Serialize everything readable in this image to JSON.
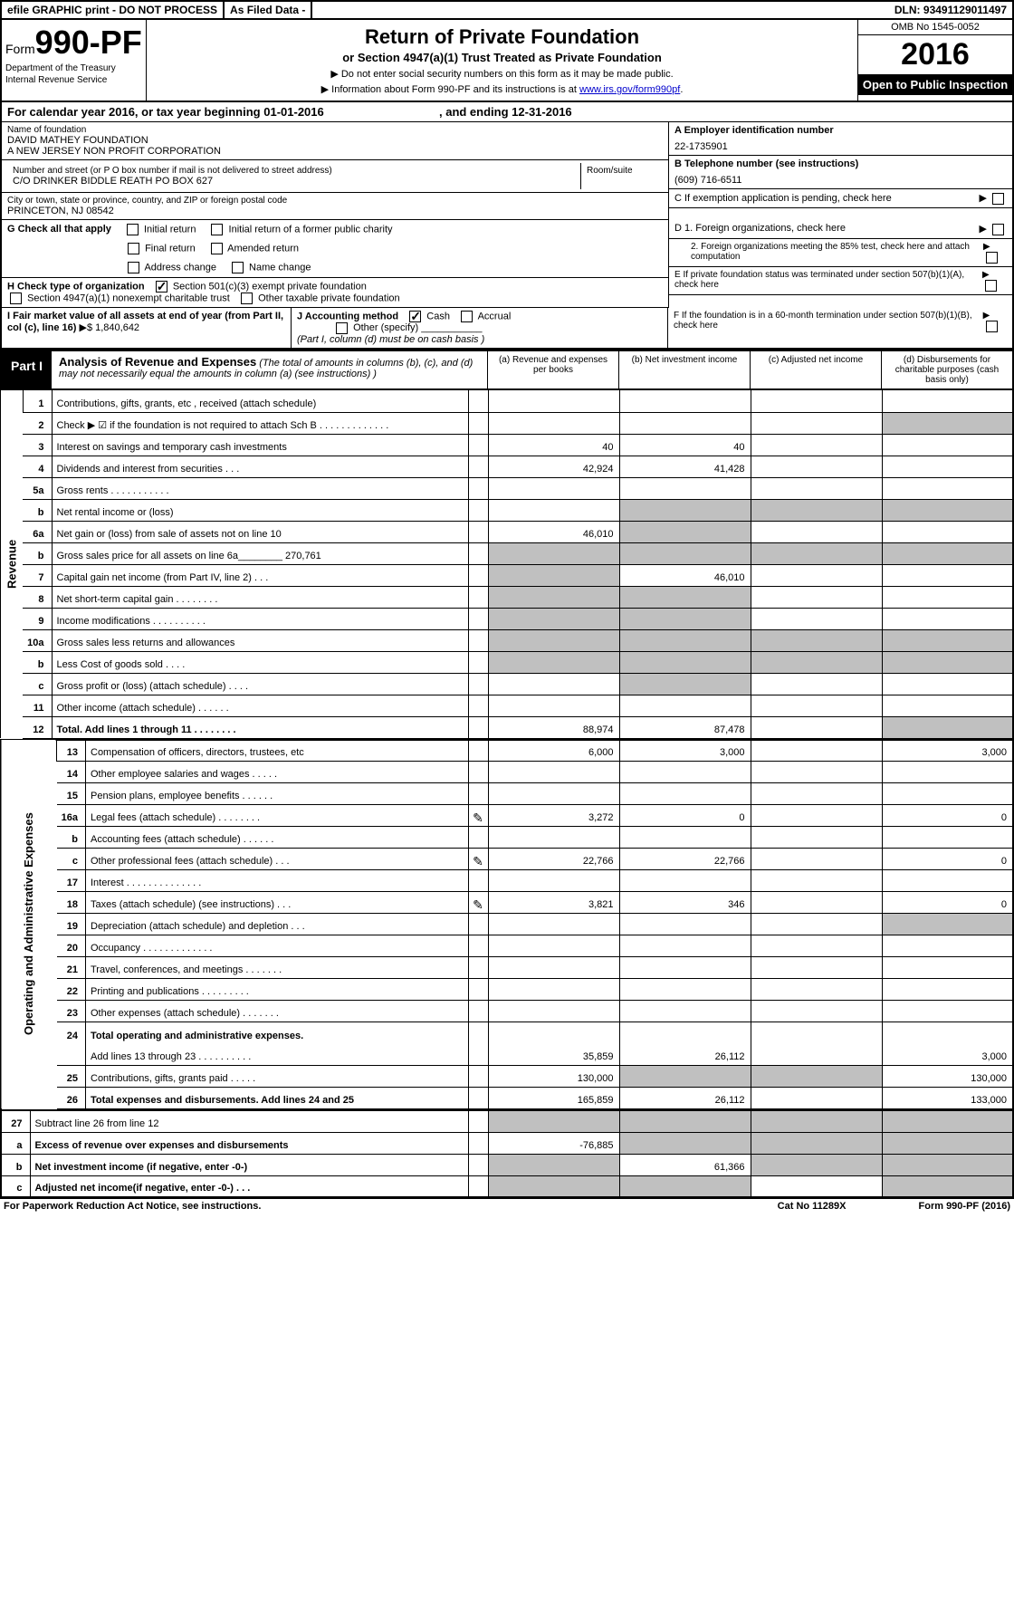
{
  "topbar": {
    "efile": "efile GRAPHIC print - DO NOT PROCESS",
    "asfiled": "As Filed Data -",
    "dln_label": "DLN:",
    "dln": "93491129011497"
  },
  "header": {
    "form_prefix": "Form",
    "form_no": "990-PF",
    "dept1": "Department of the Treasury",
    "dept2": "Internal Revenue Service",
    "title": "Return of Private Foundation",
    "subtitle": "or Section 4947(a)(1) Trust Treated as Private Foundation",
    "note1": "▶ Do not enter social security numbers on this form as it may be made public.",
    "note2_pre": "▶ Information about Form 990-PF and its instructions is at ",
    "note2_link": "www.irs.gov/form990pf",
    "omb": "OMB No 1545-0052",
    "year": "2016",
    "open": "Open to Public Inspection"
  },
  "cal": {
    "text_a": "For calendar year 2016, or tax year beginning ",
    "begin": "01-01-2016",
    "text_b": ", and ending ",
    "end": "12-31-2016"
  },
  "info": {
    "name_label": "Name of foundation",
    "name1": "DAVID MATHEY FOUNDATION",
    "name2": "A NEW JERSEY NON PROFIT CORPORATION",
    "addr_label": "Number and street (or P O  box number if mail is not delivered to street address)",
    "room_label": "Room/suite",
    "addr": "C/O DRINKER BIDDLE REATH PO BOX 627",
    "city_label": "City or town, state or province, country, and ZIP or foreign postal code",
    "city": "PRINCETON, NJ  08542",
    "a_label": "A Employer identification number",
    "a_val": "22-1735901",
    "b_label": "B Telephone number (see instructions)",
    "b_val": "(609) 716-6511",
    "c_label": "C If exemption application is pending, check here",
    "d1": "D 1. Foreign organizations, check here",
    "d2": "2. Foreign organizations meeting the 85% test, check here and attach computation",
    "e": "E  If private foundation status was terminated under section 507(b)(1)(A), check here",
    "f": "F  If the foundation is in a 60-month termination under section 507(b)(1)(B), check here"
  },
  "g": {
    "label": "G Check all that apply",
    "opts": [
      "Initial return",
      "Initial return of a former public charity",
      "Final return",
      "Amended return",
      "Address change",
      "Name change"
    ]
  },
  "h": {
    "label": "H Check type of organization",
    "o1": "Section 501(c)(3) exempt private foundation",
    "o2": "Section 4947(a)(1) nonexempt charitable trust",
    "o3": "Other taxable private foundation"
  },
  "i": {
    "label": "I Fair market value of all assets at end of year (from Part II, col  (c), line 16)",
    "val": "▶$  1,840,642"
  },
  "j": {
    "label": "J Accounting method",
    "cash": "Cash",
    "accrual": "Accrual",
    "other": "Other (specify)",
    "note": "(Part I, column (d) must be on cash basis )"
  },
  "part1": {
    "label": "Part I",
    "title": "Analysis of Revenue and Expenses",
    "title_note": " (The total of amounts in columns (b), (c), and (d) may not necessarily equal the amounts in column (a) (see instructions) )",
    "col_a": "(a) Revenue and expenses per books",
    "col_b": "(b) Net investment income",
    "col_c": "(c) Adjusted net income",
    "col_d": "(d) Disbursements for charitable purposes (cash basis only)"
  },
  "side": {
    "revenue": "Revenue",
    "expenses": "Operating and Administrative Expenses"
  },
  "rows": [
    {
      "n": "1",
      "d": "Contributions, gifts, grants, etc , received (attach schedule)",
      "a": "",
      "b": "",
      "c": "",
      "e": ""
    },
    {
      "n": "2",
      "d": "Check ▶ ☑ if the foundation is not required to attach Sch B       .   .   .   .   .   .   .   .   .   .   .   .   .",
      "a": "",
      "b": "",
      "c": "",
      "e": "",
      "dshade": true
    },
    {
      "n": "3",
      "d": "Interest on savings and temporary cash investments",
      "a": "40",
      "b": "40",
      "c": "",
      "e": ""
    },
    {
      "n": "4",
      "d": "Dividends and interest from securities        .   .   .",
      "a": "42,924",
      "b": "41,428",
      "c": "",
      "e": ""
    },
    {
      "n": "5a",
      "d": "Gross rents         .   .   .   .   .   .   .   .   .   .   .",
      "a": "",
      "b": "",
      "c": "",
      "e": ""
    },
    {
      "n": "b",
      "d": "Net rental income or (loss)",
      "a": "",
      "b": "",
      "c": "",
      "e": "",
      "shade_bcd": true
    },
    {
      "n": "6a",
      "d": "Net gain or (loss) from sale of assets not on line 10",
      "a": "46,010",
      "b": "",
      "c": "",
      "e": "",
      "shade_b": true
    },
    {
      "n": "b",
      "d": "Gross sales price for all assets on line 6a________ 270,761",
      "a": "",
      "b": "",
      "c": "",
      "e": "",
      "shade_all": true
    },
    {
      "n": "7",
      "d": "Capital gain net income (from Part IV, line 2)   .   .   .",
      "a": "",
      "b": "46,010",
      "c": "",
      "e": "",
      "shade_a": true
    },
    {
      "n": "8",
      "d": "Net short-term capital gain  .   .   .   .   .   .   .   .",
      "a": "",
      "b": "",
      "c": "",
      "e": "",
      "shade_ab": true
    },
    {
      "n": "9",
      "d": "Income modifications .   .   .   .   .   .   .   .   .   .",
      "a": "",
      "b": "",
      "c": "",
      "e": "",
      "shade_ab": true
    },
    {
      "n": "10a",
      "d": "Gross sales less returns and allowances",
      "a": "",
      "b": "",
      "c": "",
      "e": "",
      "shade_all": true
    },
    {
      "n": "b",
      "d": "Less  Cost of goods sold     .   .   .   .",
      "a": "",
      "b": "",
      "c": "",
      "e": "",
      "shade_all": true
    },
    {
      "n": "c",
      "d": "Gross profit or (loss) (attach schedule)     .   .   .   .",
      "a": "",
      "b": "",
      "c": "",
      "e": "",
      "shade_b": true
    },
    {
      "n": "11",
      "d": "Other income (attach schedule)     .   .   .   .   .   .",
      "a": "",
      "b": "",
      "c": "",
      "e": ""
    },
    {
      "n": "12",
      "d": "Total. Add lines 1 through 11   .   .   .   .   .   .   .   .",
      "a": "88,974",
      "b": "87,478",
      "c": "",
      "e": "",
      "bold": true,
      "dshade": true
    }
  ],
  "exp_rows": [
    {
      "n": "13",
      "d": "Compensation of officers, directors, trustees, etc",
      "a": "6,000",
      "b": "3,000",
      "c": "",
      "e": "3,000"
    },
    {
      "n": "14",
      "d": "Other employee salaries and wages     .   .   .   .   .",
      "a": "",
      "b": "",
      "c": "",
      "e": ""
    },
    {
      "n": "15",
      "d": "Pension plans, employee benefits  .   .   .   .   .   .",
      "a": "",
      "b": "",
      "c": "",
      "e": ""
    },
    {
      "n": "16a",
      "d": "Legal fees (attach schedule) .   .   .   .   .   .   .   .",
      "a": "3,272",
      "b": "0",
      "c": "",
      "e": "0",
      "pen": true
    },
    {
      "n": "b",
      "d": "Accounting fees (attach schedule) .   .   .   .   .   .",
      "a": "",
      "b": "",
      "c": "",
      "e": ""
    },
    {
      "n": "c",
      "d": "Other professional fees (attach schedule)    .   .   .",
      "a": "22,766",
      "b": "22,766",
      "c": "",
      "e": "0",
      "pen": true
    },
    {
      "n": "17",
      "d": "Interest  .   .   .   .   .   .   .   .   .   .   .   .   .   .",
      "a": "",
      "b": "",
      "c": "",
      "e": ""
    },
    {
      "n": "18",
      "d": "Taxes (attach schedule) (see instructions)       .   .   .",
      "a": "3,821",
      "b": "346",
      "c": "",
      "e": "0",
      "pen": true
    },
    {
      "n": "19",
      "d": "Depreciation (attach schedule) and depletion    .   .   .",
      "a": "",
      "b": "",
      "c": "",
      "e": "",
      "dshade": true
    },
    {
      "n": "20",
      "d": "Occupancy   .   .   .   .   .   .   .   .   .   .   .   .   .",
      "a": "",
      "b": "",
      "c": "",
      "e": ""
    },
    {
      "n": "21",
      "d": "Travel, conferences, and meetings .   .   .   .   .   .   .",
      "a": "",
      "b": "",
      "c": "",
      "e": ""
    },
    {
      "n": "22",
      "d": "Printing and publications .   .   .   .   .   .   .   .   .",
      "a": "",
      "b": "",
      "c": "",
      "e": ""
    },
    {
      "n": "23",
      "d": "Other expenses (attach schedule) .   .   .   .   .   .   .",
      "a": "",
      "b": "",
      "c": "",
      "e": ""
    },
    {
      "n": "24",
      "d": "Total operating and administrative expenses.",
      "a": "",
      "b": "",
      "c": "",
      "e": "",
      "bold": true,
      "noborder": true
    },
    {
      "n": "",
      "d": "Add lines 13 through 23  .   .   .   .   .   .   .   .   .   .",
      "a": "35,859",
      "b": "26,112",
      "c": "",
      "e": "3,000"
    },
    {
      "n": "25",
      "d": "Contributions, gifts, grants paid       .   .   .   .   .",
      "a": "130,000",
      "b": "",
      "c": "",
      "e": "130,000",
      "shade_bc": true
    },
    {
      "n": "26",
      "d": "Total expenses and disbursements. Add lines 24 and 25",
      "a": "165,859",
      "b": "26,112",
      "c": "",
      "e": "133,000",
      "bold": true
    }
  ],
  "net_rows": [
    {
      "n": "27",
      "d": "Subtract line 26 from line 12",
      "a": "",
      "b": "",
      "c": "",
      "e": "",
      "shade_all": true
    },
    {
      "n": "a",
      "d": "Excess of revenue over expenses and disbursements",
      "a": "-76,885",
      "b": "",
      "c": "",
      "e": "",
      "bold": true,
      "shade_bcd": true
    },
    {
      "n": "b",
      "d": "Net investment income (if negative, enter -0-)",
      "a": "",
      "b": "61,366",
      "c": "",
      "e": "",
      "bold": true,
      "shade_a": true,
      "shade_cd": true
    },
    {
      "n": "c",
      "d": "Adjusted net income(if negative, enter -0-)   .   .   .",
      "a": "",
      "b": "",
      "c": "",
      "e": "",
      "bold": true,
      "shade_ab": true,
      "shade_d": true
    }
  ],
  "footer": {
    "left": "For Paperwork Reduction Act Notice, see instructions.",
    "center": "Cat No 11289X",
    "right": "Form 990-PF (2016)"
  }
}
